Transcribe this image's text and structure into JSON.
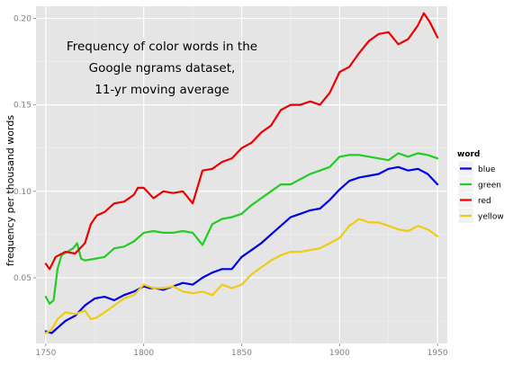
{
  "chart_data": {
    "type": "line",
    "annotation": [
      "Frequency of color words in the",
      "Google ngrams dataset,",
      "11-yr moving average"
    ],
    "xlabel": "",
    "ylabel": "frequency per thousand words",
    "xlim": [
      1745,
      1955
    ],
    "ylim": [
      0.012,
      0.207
    ],
    "x_ticks": [
      1750,
      1800,
      1850,
      1900,
      1950
    ],
    "y_ticks": [
      0.05,
      0.1,
      0.15,
      0.2
    ],
    "y_tick_labels": [
      "0.05",
      "0.10",
      "0.15",
      "0.20"
    ],
    "grid": true,
    "legend": {
      "title": "word",
      "position": "right"
    },
    "colors": {
      "blue": "#0000e6",
      "green": "#22cc22",
      "red": "#ee0000",
      "yellow": "#eecc11"
    },
    "series": [
      {
        "name": "blue",
        "x": [
          1750,
          1753,
          1756,
          1760,
          1765,
          1770,
          1775,
          1780,
          1785,
          1790,
          1795,
          1800,
          1803,
          1806,
          1810,
          1815,
          1820,
          1825,
          1830,
          1835,
          1840,
          1845,
          1850,
          1855,
          1860,
          1865,
          1870,
          1875,
          1880,
          1885,
          1890,
          1895,
          1900,
          1905,
          1910,
          1915,
          1920,
          1925,
          1930,
          1935,
          1940,
          1945,
          1950
        ],
        "values": [
          0.019,
          0.018,
          0.021,
          0.025,
          0.028,
          0.034,
          0.038,
          0.039,
          0.037,
          0.04,
          0.042,
          0.045,
          0.044,
          0.044,
          0.043,
          0.045,
          0.047,
          0.046,
          0.05,
          0.053,
          0.055,
          0.055,
          0.062,
          0.066,
          0.07,
          0.075,
          0.08,
          0.085,
          0.087,
          0.089,
          0.09,
          0.095,
          0.101,
          0.106,
          0.108,
          0.109,
          0.11,
          0.113,
          0.114,
          0.112,
          0.113,
          0.11,
          0.104
        ]
      },
      {
        "name": "green",
        "x": [
          1750,
          1752,
          1754,
          1756,
          1758,
          1761,
          1764,
          1766,
          1768,
          1770,
          1775,
          1780,
          1785,
          1790,
          1795,
          1800,
          1805,
          1810,
          1815,
          1820,
          1825,
          1830,
          1835,
          1840,
          1845,
          1850,
          1855,
          1860,
          1865,
          1870,
          1875,
          1880,
          1885,
          1890,
          1895,
          1900,
          1905,
          1910,
          1915,
          1920,
          1925,
          1930,
          1935,
          1940,
          1945,
          1950
        ],
        "values": [
          0.039,
          0.035,
          0.037,
          0.055,
          0.063,
          0.065,
          0.067,
          0.07,
          0.061,
          0.06,
          0.061,
          0.062,
          0.067,
          0.068,
          0.071,
          0.076,
          0.077,
          0.076,
          0.076,
          0.077,
          0.076,
          0.069,
          0.081,
          0.084,
          0.085,
          0.087,
          0.092,
          0.096,
          0.1,
          0.104,
          0.104,
          0.107,
          0.11,
          0.112,
          0.114,
          0.12,
          0.121,
          0.121,
          0.12,
          0.119,
          0.118,
          0.122,
          0.12,
          0.122,
          0.121,
          0.119
        ]
      },
      {
        "name": "red",
        "x": [
          1750,
          1752,
          1755,
          1760,
          1765,
          1770,
          1773,
          1776,
          1780,
          1785,
          1790,
          1795,
          1797,
          1800,
          1805,
          1810,
          1815,
          1820,
          1825,
          1830,
          1835,
          1840,
          1845,
          1850,
          1855,
          1860,
          1865,
          1870,
          1875,
          1880,
          1885,
          1890,
          1895,
          1900,
          1905,
          1910,
          1915,
          1920,
          1925,
          1930,
          1935,
          1940,
          1943,
          1946,
          1950
        ],
        "values": [
          0.058,
          0.055,
          0.062,
          0.065,
          0.064,
          0.07,
          0.081,
          0.086,
          0.088,
          0.093,
          0.094,
          0.098,
          0.102,
          0.102,
          0.096,
          0.1,
          0.099,
          0.1,
          0.093,
          0.112,
          0.113,
          0.117,
          0.119,
          0.125,
          0.128,
          0.134,
          0.138,
          0.147,
          0.15,
          0.15,
          0.152,
          0.15,
          0.157,
          0.169,
          0.172,
          0.18,
          0.187,
          0.191,
          0.192,
          0.185,
          0.188,
          0.196,
          0.203,
          0.198,
          0.189
        ]
      },
      {
        "name": "yellow",
        "x": [
          1750,
          1753,
          1756,
          1760,
          1765,
          1770,
          1773,
          1776,
          1780,
          1785,
          1790,
          1795,
          1800,
          1805,
          1810,
          1815,
          1820,
          1825,
          1830,
          1835,
          1840,
          1845,
          1850,
          1855,
          1860,
          1865,
          1870,
          1875,
          1880,
          1885,
          1890,
          1895,
          1900,
          1905,
          1910,
          1915,
          1920,
          1925,
          1930,
          1935,
          1940,
          1945,
          1950
        ],
        "values": [
          0.018,
          0.02,
          0.026,
          0.03,
          0.029,
          0.031,
          0.026,
          0.027,
          0.03,
          0.034,
          0.038,
          0.04,
          0.046,
          0.044,
          0.044,
          0.045,
          0.042,
          0.041,
          0.042,
          0.04,
          0.046,
          0.044,
          0.046,
          0.052,
          0.056,
          0.06,
          0.063,
          0.065,
          0.065,
          0.066,
          0.067,
          0.07,
          0.073,
          0.08,
          0.084,
          0.082,
          0.082,
          0.08,
          0.078,
          0.077,
          0.08,
          0.078,
          0.074
        ]
      }
    ]
  }
}
